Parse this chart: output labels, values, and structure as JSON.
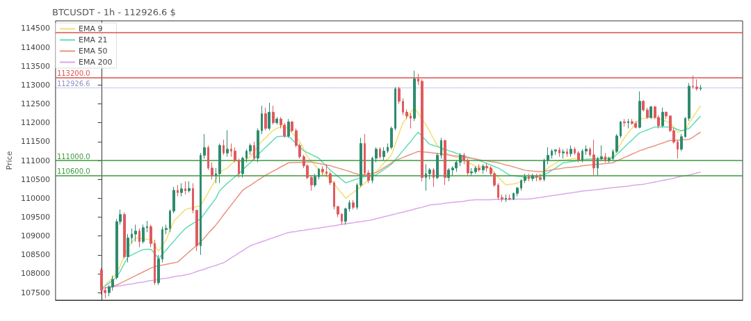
{
  "chart_data": {
    "type": "candlestick",
    "title": "BTCUSDT - 1h - 112926.6 $",
    "ylabel": "Price",
    "categories": [
      null,
      null,
      null,
      null,
      null,
      null,
      null,
      null,
      null,
      null,
      null,
      null,
      null,
      null,
      null,
      null,
      null,
      null,
      null,
      null,
      null,
      null,
      null,
      null,
      null,
      null,
      null,
      null,
      null,
      null,
      null,
      null,
      null,
      null,
      null,
      null,
      null,
      null,
      null,
      null,
      null,
      null,
      null,
      null,
      null,
      null,
      null,
      null,
      null,
      null,
      null,
      null,
      null,
      null,
      null,
      null,
      null,
      null,
      null,
      null,
      null,
      null,
      null,
      null,
      null,
      null,
      null,
      null,
      null,
      null,
      null,
      null,
      null,
      null,
      null,
      null,
      null,
      null,
      null,
      null,
      null,
      null,
      null,
      null,
      null,
      null,
      null,
      null,
      null,
      null,
      null,
      null,
      null,
      null,
      null,
      null,
      null,
      null,
      null,
      null,
      null,
      null,
      null,
      null,
      null,
      null,
      null,
      null,
      null,
      null,
      null,
      null,
      null,
      null,
      null,
      null,
      null,
      null,
      null,
      null,
      null,
      null,
      null,
      null,
      null,
      null,
      null,
      null,
      null,
      null,
      null,
      null,
      null,
      null,
      null,
      null,
      null,
      null,
      null,
      null,
      null,
      null,
      null,
      null,
      null,
      null,
      null,
      null,
      null,
      null,
      null,
      null,
      null,
      null,
      null,
      null,
      null,
      null
    ],
    "ohlc": [
      [
        108100,
        108150,
        107450,
        107560
      ],
      [
        107560,
        107650,
        107350,
        107500
      ],
      [
        107500,
        107700,
        107400,
        107650
      ],
      [
        107650,
        107950,
        107550,
        107850
      ],
      [
        107900,
        109450,
        107850,
        109380
      ],
      [
        109380,
        109700,
        109300,
        109570
      ],
      [
        109570,
        109620,
        108400,
        108450
      ],
      [
        108450,
        109050,
        108300,
        108950
      ],
      [
        108950,
        109200,
        108800,
        109050
      ],
      [
        109050,
        109300,
        108850,
        109130
      ],
      [
        109130,
        109200,
        108700,
        108850
      ],
      [
        108850,
        109300,
        108800,
        109220
      ],
      [
        109220,
        109400,
        109100,
        109250
      ],
      [
        109250,
        109300,
        108700,
        108800
      ],
      [
        108800,
        108900,
        107700,
        107760
      ],
      [
        107760,
        108500,
        107700,
        108390
      ],
      [
        108390,
        109250,
        108300,
        109170
      ],
      [
        109170,
        109300,
        109050,
        109200
      ],
      [
        109200,
        109700,
        109100,
        109660
      ],
      [
        109660,
        110300,
        109600,
        110210
      ],
      [
        110210,
        110350,
        110050,
        110150
      ],
      [
        110150,
        110400,
        110050,
        110250
      ],
      [
        110250,
        110450,
        110100,
        110200
      ],
      [
        110200,
        110450,
        110150,
        110260
      ],
      [
        110260,
        110400,
        109600,
        109680
      ],
      [
        109680,
        109700,
        108600,
        108740
      ],
      [
        108740,
        111200,
        108500,
        111140
      ],
      [
        111140,
        111700,
        111050,
        111340
      ],
      [
        111340,
        111400,
        110750,
        110800
      ],
      [
        110800,
        110950,
        110500,
        110600
      ],
      [
        110600,
        110800,
        110400,
        110650
      ],
      [
        110650,
        111450,
        110400,
        111400
      ],
      [
        111400,
        111550,
        111150,
        111200
      ],
      [
        111200,
        111800,
        111100,
        111300
      ],
      [
        111300,
        111450,
        111100,
        111250
      ],
      [
        111250,
        111350,
        110950,
        111000
      ],
      [
        111000,
        111050,
        110550,
        110650
      ],
      [
        110650,
        111100,
        110550,
        111060
      ],
      [
        111060,
        111300,
        110950,
        111250
      ],
      [
        111250,
        111450,
        111150,
        111400
      ],
      [
        111400,
        111500,
        111000,
        111060
      ],
      [
        111060,
        111850,
        110950,
        111790
      ],
      [
        111790,
        112450,
        111700,
        112240
      ],
      [
        112240,
        112400,
        111800,
        111850
      ],
      [
        111850,
        112530,
        111800,
        112280
      ],
      [
        112280,
        112450,
        111950,
        112000
      ],
      [
        112000,
        112150,
        111950,
        112100
      ],
      [
        112100,
        112150,
        111850,
        111940
      ],
      [
        111940,
        112000,
        111600,
        111650
      ],
      [
        111650,
        112100,
        111600,
        112020
      ],
      [
        112020,
        112050,
        111750,
        111790
      ],
      [
        111790,
        111850,
        111350,
        111400
      ],
      [
        111400,
        111450,
        111050,
        111100
      ],
      [
        111100,
        111150,
        110800,
        110860
      ],
      [
        110860,
        110900,
        110500,
        110550
      ],
      [
        110550,
        110600,
        110200,
        110350
      ],
      [
        110350,
        110650,
        110300,
        110570
      ],
      [
        110570,
        110800,
        110500,
        110770
      ],
      [
        110770,
        110850,
        110600,
        110700
      ],
      [
        110700,
        110900,
        110600,
        110650
      ],
      [
        110650,
        110700,
        110350,
        110410
      ],
      [
        110410,
        110450,
        109700,
        109780
      ],
      [
        109780,
        109800,
        109500,
        109580
      ],
      [
        109580,
        109600,
        109300,
        109390
      ],
      [
        109390,
        109750,
        109300,
        109720
      ],
      [
        109720,
        109950,
        109650,
        109880
      ],
      [
        109880,
        109950,
        109700,
        109760
      ],
      [
        109760,
        110400,
        109700,
        110350
      ],
      [
        110350,
        111600,
        110300,
        111450
      ],
      [
        111450,
        111700,
        110600,
        110670
      ],
      [
        110670,
        110750,
        110400,
        110470
      ],
      [
        110470,
        111100,
        110400,
        111060
      ],
      [
        111060,
        111350,
        110950,
        111300
      ],
      [
        111300,
        111350,
        111050,
        111100
      ],
      [
        111100,
        111350,
        111000,
        111250
      ],
      [
        111250,
        111450,
        111200,
        111350
      ],
      [
        111350,
        111900,
        111300,
        111850
      ],
      [
        111850,
        112950,
        111800,
        112900
      ],
      [
        112900,
        112950,
        112500,
        112570
      ],
      [
        112570,
        112650,
        112200,
        112280
      ],
      [
        112280,
        112350,
        112100,
        112180
      ],
      [
        112180,
        112250,
        111850,
        112120
      ],
      [
        112120,
        113380,
        112050,
        113160
      ],
      [
        113160,
        113300,
        113000,
        113100
      ],
      [
        113100,
        113150,
        110450,
        110550
      ],
      [
        110550,
        110900,
        110200,
        110650
      ],
      [
        110650,
        110800,
        110500,
        110750
      ],
      [
        110750,
        110800,
        110300,
        110550
      ],
      [
        110550,
        111200,
        110500,
        111140
      ],
      [
        111140,
        111600,
        111050,
        111530
      ],
      [
        111530,
        111550,
        110350,
        110550
      ],
      [
        110550,
        110800,
        110450,
        110750
      ],
      [
        110750,
        110850,
        110600,
        110800
      ],
      [
        110800,
        111000,
        110700,
        110950
      ],
      [
        110950,
        111200,
        110850,
        111140
      ],
      [
        111140,
        111200,
        110900,
        111000
      ],
      [
        111000,
        111050,
        110600,
        110670
      ],
      [
        110670,
        110800,
        110600,
        110700
      ],
      [
        110700,
        110850,
        110650,
        110800
      ],
      [
        110800,
        110900,
        110700,
        110750
      ],
      [
        110750,
        110900,
        110650,
        110850
      ],
      [
        110850,
        110950,
        110700,
        110800
      ],
      [
        110800,
        110850,
        110600,
        110650
      ],
      [
        110650,
        110700,
        110300,
        110350
      ],
      [
        110350,
        110400,
        109950,
        110020
      ],
      [
        110020,
        110100,
        109900,
        109980
      ],
      [
        109980,
        110100,
        109900,
        110000
      ],
      [
        110000,
        110100,
        109950,
        109980
      ],
      [
        109980,
        110150,
        109950,
        110130
      ],
      [
        110130,
        110300,
        110050,
        110270
      ],
      [
        110270,
        110500,
        110200,
        110470
      ],
      [
        110470,
        110650,
        110400,
        110570
      ],
      [
        110570,
        110650,
        110450,
        110520
      ],
      [
        110520,
        110650,
        110450,
        110600
      ],
      [
        110600,
        110650,
        110450,
        110550
      ],
      [
        110550,
        110650,
        110450,
        110500
      ],
      [
        110500,
        111050,
        110450,
        111000
      ],
      [
        111000,
        111350,
        110900,
        111140
      ],
      [
        111140,
        111300,
        111050,
        111250
      ],
      [
        111250,
        111300,
        111150,
        111280
      ],
      [
        111280,
        111350,
        111100,
        111200
      ],
      [
        111200,
        111300,
        111050,
        111230
      ],
      [
        111230,
        111320,
        111100,
        111180
      ],
      [
        111180,
        111400,
        111100,
        111300
      ],
      [
        111300,
        111350,
        111150,
        111200
      ],
      [
        111200,
        111250,
        110950,
        111020
      ],
      [
        111020,
        111300,
        110950,
        111250
      ],
      [
        111250,
        111400,
        111150,
        111300
      ],
      [
        111300,
        111350,
        111100,
        111150
      ],
      [
        111150,
        111550,
        110600,
        110800
      ],
      [
        110800,
        111100,
        110600,
        111050
      ],
      [
        111050,
        111400,
        111000,
        111100
      ],
      [
        111100,
        111200,
        110950,
        111000
      ],
      [
        111000,
        111100,
        110950,
        111050
      ],
      [
        111050,
        111300,
        111000,
        111240
      ],
      [
        111240,
        111700,
        111200,
        111650
      ],
      [
        111650,
        112050,
        111600,
        112020
      ],
      [
        112020,
        112100,
        111900,
        112000
      ],
      [
        112000,
        112100,
        111850,
        112030
      ],
      [
        112030,
        112100,
        111950,
        111980
      ],
      [
        111980,
        112050,
        111850,
        111880
      ],
      [
        111880,
        112830,
        111850,
        112570
      ],
      [
        112570,
        112600,
        112300,
        112340
      ],
      [
        112340,
        112400,
        112100,
        112140
      ],
      [
        112140,
        112450,
        112100,
        112420
      ],
      [
        112420,
        112450,
        112100,
        112140
      ],
      [
        112140,
        112200,
        111850,
        111920
      ],
      [
        111920,
        112400,
        111880,
        112280
      ],
      [
        112280,
        112300,
        112100,
        112180
      ],
      [
        112180,
        112200,
        111750,
        111790
      ],
      [
        111790,
        111850,
        111450,
        111490
      ],
      [
        111490,
        111550,
        111050,
        111300
      ],
      [
        111300,
        111700,
        111250,
        111630
      ],
      [
        111630,
        112150,
        111600,
        112120
      ],
      [
        112120,
        113050,
        112050,
        112970
      ],
      [
        112970,
        113250,
        112900,
        112950
      ],
      [
        112950,
        113150,
        112850,
        112900
      ],
      [
        112900,
        113000,
        112850,
        112926.6
      ]
    ],
    "series": [
      {
        "name": "EMA 9",
        "type": "line",
        "color": "#f2df6e",
        "values": [
          null,
          107700,
          107800,
          107900,
          108000,
          108230,
          108470,
          108700,
          108830,
          108950,
          108940,
          108930,
          108910,
          108900,
          108750,
          108600,
          108750,
          108900,
          109150,
          109400,
          109500,
          109600,
          109700,
          109730,
          109750,
          109780,
          109800,
          109980,
          110150,
          110330,
          110500,
          110700,
          110750,
          110800,
          110900,
          111000,
          110980,
          110950,
          111030,
          111100,
          111230,
          111370,
          111500,
          111600,
          111700,
          111800,
          111850,
          111900,
          111880,
          111850,
          111730,
          111620,
          111500,
          111300,
          111100,
          110980,
          110870,
          110750,
          110670,
          110580,
          110500,
          110380,
          110250,
          110130,
          110000,
          110080,
          110150,
          110230,
          110300,
          110400,
          110500,
          110600,
          110700,
          110810,
          110930,
          111040,
          111150,
          111430,
          111720,
          112000,
          112130,
          112270,
          112400,
          112250,
          112100,
          111950,
          111770,
          111580,
          111400,
          111320,
          111230,
          111150,
          111120,
          111080,
          111050,
          111000,
          110950,
          110900,
          110850,
          110840,
          110830,
          110810,
          110800,
          110680,
          110550,
          110450,
          110350,
          110370,
          110380,
          110400,
          110450,
          110500,
          110550,
          110570,
          110580,
          110600,
          110700,
          110800,
          110870,
          110930,
          111000,
          111010,
          111020,
          111040,
          111050,
          111040,
          111030,
          111030,
          111020,
          111010,
          111000,
          111030,
          111050,
          111080,
          111100,
          111270,
          111430,
          111600,
          111730,
          111850,
          111980,
          112100,
          112110,
          112130,
          112140,
          112150,
          112110,
          112080,
          112040,
          112000,
          111880,
          111750,
          111780,
          111800,
          112000,
          112150,
          112300,
          112450
        ]
      },
      {
        "name": "EMA 21",
        "type": "line",
        "color": "#5fdcb4",
        "values": [
          107600,
          107680,
          107750,
          107830,
          107900,
          108080,
          108270,
          108450,
          108500,
          108550,
          108600,
          108640,
          108650,
          108650,
          108530,
          108400,
          108520,
          108630,
          108750,
          108860,
          108980,
          109090,
          109200,
          109270,
          109330,
          109390,
          109450,
          109590,
          109730,
          109860,
          110000,
          110200,
          110300,
          110400,
          110480,
          110570,
          110650,
          110750,
          110850,
          110940,
          111040,
          111150,
          111250,
          111350,
          111440,
          111540,
          111630,
          111640,
          111640,
          111650,
          111550,
          111450,
          111360,
          111260,
          111210,
          111160,
          111110,
          111060,
          110950,
          110850,
          110740,
          110660,
          110580,
          110490,
          110410,
          110440,
          110480,
          110510,
          110550,
          110570,
          110590,
          110600,
          110620,
          110690,
          110760,
          110830,
          110900,
          111020,
          111140,
          111260,
          111380,
          111500,
          111630,
          111750,
          111640,
          111540,
          111430,
          111400,
          111370,
          111330,
          111300,
          111260,
          111230,
          111190,
          111150,
          111120,
          111090,
          111060,
          111030,
          111000,
          110960,
          110920,
          110880,
          110840,
          110800,
          110740,
          110670,
          110610,
          110600,
          110580,
          110570,
          110550,
          110550,
          110550,
          110550,
          110590,
          110630,
          110670,
          110740,
          110800,
          110870,
          110940,
          110950,
          110970,
          110980,
          111000,
          111010,
          111030,
          111040,
          111040,
          111050,
          111050,
          111050,
          111060,
          111060,
          111160,
          111250,
          111350,
          111450,
          111540,
          111640,
          111730,
          111770,
          111810,
          111850,
          111890,
          111890,
          111890,
          111890,
          111890,
          111860,
          111820,
          111790,
          111820,
          111850,
          111960,
          112070,
          112180
        ]
      },
      {
        "name": "EMA 50",
        "type": "line",
        "color": "#e8947e",
        "values": [
          null,
          107630,
          107650,
          107680,
          107700,
          107750,
          107800,
          107850,
          107900,
          107950,
          108000,
          108050,
          108100,
          108150,
          108190,
          108210,
          108230,
          108250,
          108270,
          108290,
          108310,
          108400,
          108490,
          108580,
          108670,
          108750,
          108840,
          108950,
          109070,
          109180,
          109290,
          109420,
          109560,
          109690,
          109820,
          109950,
          110080,
          110210,
          110280,
          110340,
          110410,
          110480,
          110540,
          110610,
          110660,
          110720,
          110770,
          110830,
          110880,
          110940,
          110940,
          110950,
          110950,
          110950,
          110960,
          110960,
          110940,
          110920,
          110900,
          110880,
          110860,
          110830,
          110800,
          110770,
          110740,
          110710,
          110670,
          110640,
          110610,
          110630,
          110640,
          110660,
          110680,
          110740,
          110810,
          110870,
          110940,
          111000,
          111040,
          111080,
          111120,
          111160,
          111200,
          111240,
          111230,
          111220,
          111210,
          111200,
          111190,
          111170,
          111160,
          111150,
          111130,
          111120,
          111100,
          111090,
          111070,
          111060,
          111040,
          111020,
          111000,
          110990,
          110970,
          110960,
          110940,
          110910,
          110880,
          110860,
          110830,
          110800,
          110770,
          110740,
          110730,
          110720,
          110710,
          110700,
          110720,
          110730,
          110750,
          110770,
          110780,
          110800,
          110810,
          110820,
          110830,
          110840,
          110860,
          110870,
          110880,
          110890,
          110900,
          110910,
          110920,
          110930,
          110940,
          110990,
          111030,
          111080,
          111120,
          111170,
          111210,
          111260,
          111290,
          111330,
          111360,
          111390,
          111430,
          111460,
          111500,
          111530,
          111540,
          111540,
          111550,
          111550,
          111560,
          111620,
          111690,
          111750
        ]
      },
      {
        "name": "EMA 200",
        "type": "line",
        "color": "#dba6ea",
        "values": [
          107600,
          107620,
          107630,
          107650,
          107670,
          107680,
          107700,
          107720,
          107730,
          107750,
          107770,
          107780,
          107800,
          107820,
          107830,
          107850,
          107870,
          107880,
          107900,
          107920,
          107940,
          107950,
          107970,
          107990,
          108020,
          108060,
          108090,
          108120,
          108160,
          108190,
          108220,
          108260,
          108290,
          108350,
          108420,
          108480,
          108550,
          108610,
          108680,
          108740,
          108780,
          108810,
          108850,
          108880,
          108920,
          108950,
          108990,
          109020,
          109060,
          109090,
          109110,
          109120,
          109140,
          109150,
          109170,
          109180,
          109200,
          109210,
          109230,
          109240,
          109260,
          109270,
          109290,
          109310,
          109320,
          109340,
          109350,
          109370,
          109380,
          109400,
          109410,
          109430,
          109460,
          109480,
          109510,
          109530,
          109560,
          109580,
          109610,
          109630,
          109660,
          109680,
          109710,
          109740,
          109760,
          109790,
          109820,
          109830,
          109840,
          109850,
          109870,
          109880,
          109890,
          109900,
          109910,
          109920,
          109940,
          109950,
          109960,
          109960,
          109960,
          109960,
          109960,
          109970,
          109970,
          109970,
          109970,
          109970,
          109970,
          109980,
          109980,
          109980,
          109980,
          109990,
          110010,
          110020,
          110040,
          110050,
          110070,
          110080,
          110100,
          110110,
          110130,
          110140,
          110160,
          110170,
          110190,
          110200,
          110210,
          110220,
          110230,
          110240,
          110260,
          110270,
          110280,
          110290,
          110300,
          110310,
          110320,
          110340,
          110350,
          110360,
          110370,
          110390,
          110410,
          110430,
          110450,
          110470,
          110490,
          110510,
          110530,
          110560,
          110580,
          110600,
          110620,
          110640,
          110670,
          110690
        ]
      }
    ],
    "ylim": [
      107300,
      114700
    ],
    "yticks": [
      107500,
      108000,
      108500,
      109000,
      109500,
      110000,
      110500,
      111000,
      111500,
      112000,
      112500,
      113000,
      113500,
      114000,
      114500
    ],
    "ref_lines": [
      {
        "axis": "y",
        "value": 114400,
        "color": "#d9534f"
      },
      {
        "axis": "y",
        "value": 113200,
        "label": "113200.0",
        "color": "#d9534f"
      },
      {
        "axis": "y",
        "value": 112926.6,
        "label": "112926.6",
        "color": "#4040a8",
        "line_style": "dotted"
      },
      {
        "axis": "y",
        "value": 111000,
        "label": "111000.0",
        "color": "#3a9a3a"
      },
      {
        "axis": "y",
        "value": 110600,
        "label": "110600.0",
        "color": "#3a9a3a"
      }
    ],
    "legend": "top left",
    "grid": false,
    "tick_labels": "y"
  }
}
